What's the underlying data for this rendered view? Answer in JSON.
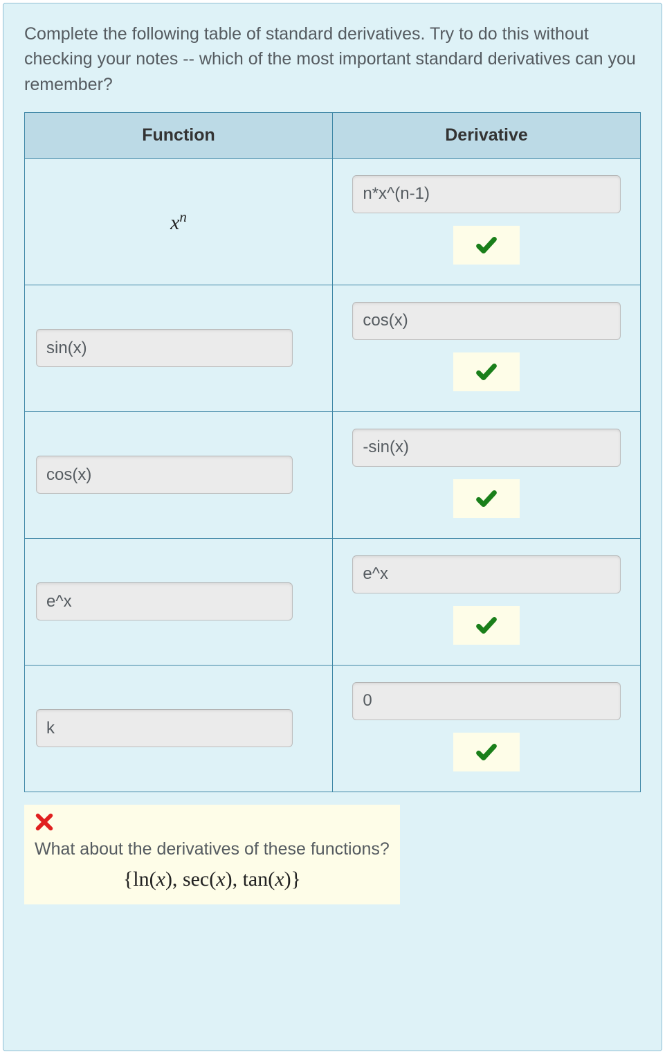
{
  "colors": {
    "panel_bg": "#def2f7",
    "panel_border": "#8fbfd4",
    "table_border": "#3f87a6",
    "header_bg": "#bcdae6",
    "text_color": "#555b60",
    "input_bg": "#ebebeb",
    "input_border": "#bdbdbd",
    "badge_bg": "#fefde8",
    "check_green": "#1a7f1a",
    "cross_red": "#e02020"
  },
  "typography": {
    "body_font": "Arial, Helvetica, sans-serif",
    "math_font": "Times New Roman, Times, serif",
    "prompt_fontsize": 25,
    "header_fontsize": 25,
    "input_fontsize": 24,
    "math_fontsize": 30
  },
  "prompt_text": "Complete the following table of standard derivatives. Try to do this without checking your notes -- which of the most important standard derivatives can you remember?",
  "table": {
    "headers": {
      "col1": "Function",
      "col2": "Derivative"
    },
    "rows": [
      {
        "function_is_math": true,
        "function_math_html": "x<sup>n</sup>",
        "function_input": "",
        "derivative_input": "n*x^(n-1)",
        "correct": true
      },
      {
        "function_is_math": false,
        "function_math_html": "",
        "function_input": "sin(x)",
        "derivative_input": "cos(x)",
        "correct": true
      },
      {
        "function_is_math": false,
        "function_math_html": "",
        "function_input": "cos(x)",
        "derivative_input": "-sin(x)",
        "correct": true
      },
      {
        "function_is_math": false,
        "function_math_html": "",
        "function_input": "e^x",
        "derivative_input": "e^x",
        "correct": true
      },
      {
        "function_is_math": false,
        "function_math_html": "",
        "function_input": "k",
        "derivative_input": "0",
        "correct": true
      }
    ]
  },
  "feedback": {
    "status": "incorrect",
    "text": "What about the derivatives of these functions?",
    "math_html": "{<span class=\"rm\">ln</span>(<span class=\"it\">x</span>), <span class=\"rm\">sec</span>(<span class=\"it\">x</span>), <span class=\"rm\">tan</span>(<span class=\"it\">x</span>)}"
  }
}
